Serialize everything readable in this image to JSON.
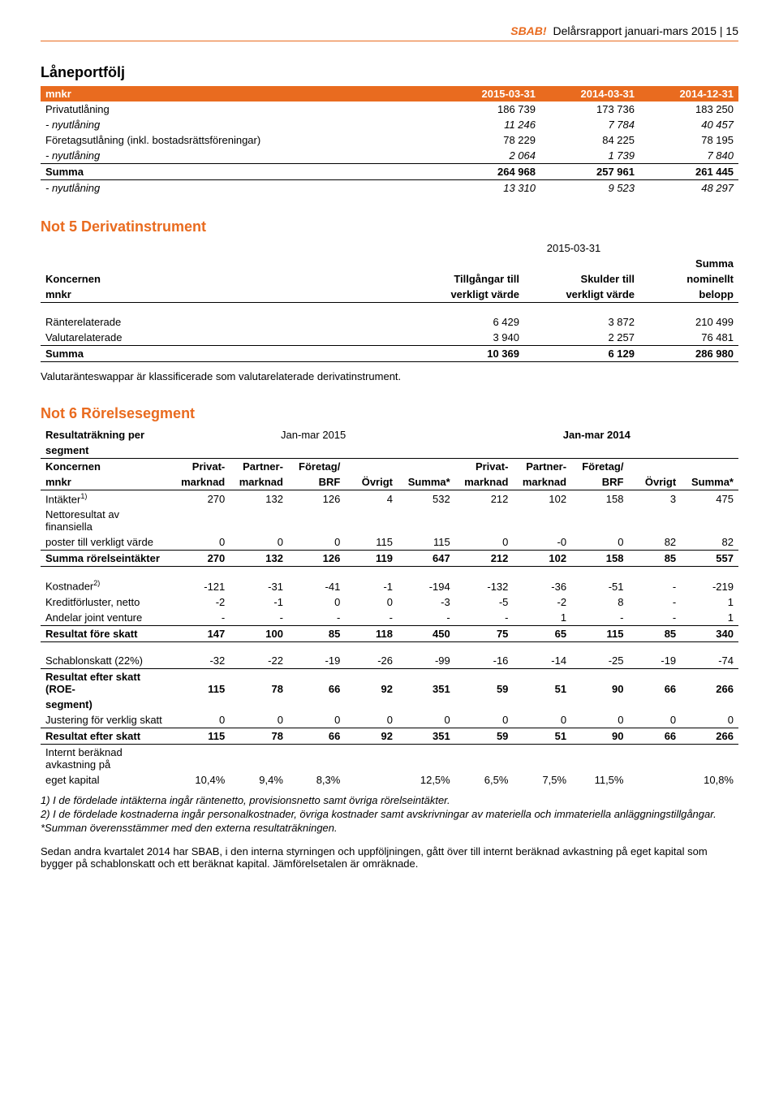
{
  "header": {
    "brand": "SBAB!",
    "title": "Delårsrapport januari-mars 2015 | 15"
  },
  "colors": {
    "accent": "#e96b1f",
    "text": "#000000",
    "background": "#ffffff"
  },
  "laneportfolj": {
    "title": "Låneportfölj",
    "unit": "mnkr",
    "columns": [
      "2015-03-31",
      "2014-03-31",
      "2014-12-31"
    ],
    "rows": [
      {
        "label": "Privatutlåning",
        "v": [
          "186 739",
          "173 736",
          "183 250"
        ]
      },
      {
        "label": " - nyutlåning",
        "italic": true,
        "v": [
          "11 246",
          "7 784",
          "40 457"
        ]
      },
      {
        "label": "Företagsutlåning (inkl. bostadsrättsföreningar)",
        "v": [
          "78 229",
          "84 225",
          "78 195"
        ]
      },
      {
        "label": " - nyutlåning",
        "italic": true,
        "v": [
          "2 064",
          "1 739",
          "7 840"
        ]
      },
      {
        "label": "Summa",
        "bold": true,
        "border": true,
        "v": [
          "264 968",
          "257 961",
          "261 445"
        ]
      },
      {
        "label": " - nyutlåning",
        "italic": true,
        "v": [
          "13 310",
          "9 523",
          "48 297"
        ]
      }
    ]
  },
  "not5": {
    "title": "Not 5 Derivatinstrument",
    "date": "2015-03-31",
    "col_labels": {
      "entity1": "Koncernen",
      "entity2": "mnkr",
      "c1a": "Tillgångar till",
      "c1b": "verkligt värde",
      "c2a": "Skulder till",
      "c2b": "verkligt värde",
      "c3a": "Summa",
      "c3b": "nominellt",
      "c3c": "belopp"
    },
    "rows": [
      {
        "label": "Ränterelaterade",
        "v": [
          "6 429",
          "3 872",
          "210 499"
        ]
      },
      {
        "label": "Valutarelaterade",
        "v": [
          "3 940",
          "2 257",
          "76 481"
        ]
      },
      {
        "label": "Summa",
        "bold": true,
        "border": true,
        "v": [
          "10 369",
          "6 129",
          "286 980"
        ]
      }
    ],
    "note": "Valutaränteswappar är klassificerade som valutarelaterade derivatinstrument."
  },
  "not6": {
    "title": "Not 6 Rörelsesegment",
    "subtitle1": "Resultaträkning per",
    "subtitle2": "segment",
    "period1": "Jan-mar 2015",
    "period2": "Jan-mar 2014",
    "entity1": "Koncernen",
    "entity2": "mnkr",
    "col_groups": {
      "g1": [
        "Privat-",
        "marknad"
      ],
      "g2": [
        "Partner-",
        "marknad"
      ],
      "g3": [
        "Företag/",
        "BRF"
      ],
      "g4": [
        "",
        "Övrigt"
      ],
      "g5": [
        "",
        "Summa*"
      ]
    },
    "rows": [
      {
        "label_html": "Intäkter<sup>1)</sup>",
        "v": [
          "270",
          "132",
          "126",
          "4",
          "532",
          "212",
          "102",
          "158",
          "3",
          "475"
        ]
      },
      {
        "label": "Nettoresultat av finansiella",
        "continuation": true
      },
      {
        "label": "poster till verkligt värde",
        "v": [
          "0",
          "0",
          "0",
          "115",
          "115",
          "0",
          "-0",
          "0",
          "82",
          "82"
        ]
      },
      {
        "label": "Summa rörelseintäkter",
        "bold": true,
        "border": "tb",
        "v": [
          "270",
          "132",
          "126",
          "119",
          "647",
          "212",
          "102",
          "158",
          "85",
          "557"
        ]
      },
      {
        "spacer": true
      },
      {
        "label_html": "Kostnader<sup>2)</sup>",
        "v": [
          "-121",
          "-31",
          "-41",
          "-1",
          "-194",
          "-132",
          "-36",
          "-51",
          "-",
          "-219"
        ]
      },
      {
        "label": "Kreditförluster, netto",
        "v": [
          "-2",
          "-1",
          "0",
          "0",
          "-3",
          "-5",
          "-2",
          "8",
          "-",
          "1"
        ]
      },
      {
        "label": "Andelar joint venture",
        "v": [
          "-",
          "-",
          "-",
          "-",
          "-",
          "-",
          "1",
          "-",
          "-",
          "1"
        ]
      },
      {
        "label": "Resultat före skatt",
        "bold": true,
        "border": "tb",
        "v": [
          "147",
          "100",
          "85",
          "118",
          "450",
          "75",
          "65",
          "115",
          "85",
          "340"
        ]
      },
      {
        "spacer": true
      },
      {
        "label": "Schablonskatt (22%)",
        "border": "b",
        "v": [
          "-32",
          "-22",
          "-19",
          "-26",
          "-99",
          "-16",
          "-14",
          "-25",
          "-19",
          "-74"
        ]
      },
      {
        "label": "Resultat efter skatt (ROE-",
        "bold": true,
        "v": [
          "115",
          "78",
          "66",
          "92",
          "351",
          "59",
          "51",
          "90",
          "66",
          "266"
        ]
      },
      {
        "label": "segment)",
        "bold": true,
        "continuation_nv": true
      },
      {
        "label": "Justering för verklig skatt",
        "v": [
          "0",
          "0",
          "0",
          "0",
          "0",
          "0",
          "0",
          "0",
          "0",
          "0"
        ]
      },
      {
        "label": "Resultat efter skatt",
        "bold": true,
        "border": "tb",
        "v": [
          "115",
          "78",
          "66",
          "92",
          "351",
          "59",
          "51",
          "90",
          "66",
          "266"
        ]
      },
      {
        "label": "Internt beräknad avkastning på",
        "continuation": true
      },
      {
        "label": "eget kapital",
        "v": [
          "10,4%",
          "9,4%",
          "8,3%",
          "",
          "12,5%",
          "6,5%",
          "7,5%",
          "11,5%",
          "",
          "10,8%"
        ]
      }
    ],
    "footnotes": [
      "1) I de fördelade intäkterna ingår räntenetto, provisionsnetto samt övriga rörelseintäkter.",
      "2) I de fördelade kostnaderna ingår personalkostnader, övriga kostnader samt avskrivningar av materiella och immateriella anläggningstillgångar.",
      "*Summan överensstämmer med den externa resultaträkningen."
    ],
    "endnote": "Sedan andra kvartalet 2014 har SBAB, i den interna styrningen och uppföljningen, gått över till internt beräknad avkastning på eget kapital som bygger på schablonskatt och ett beräknat kapital. Jämförelsetalen är omräknade."
  }
}
